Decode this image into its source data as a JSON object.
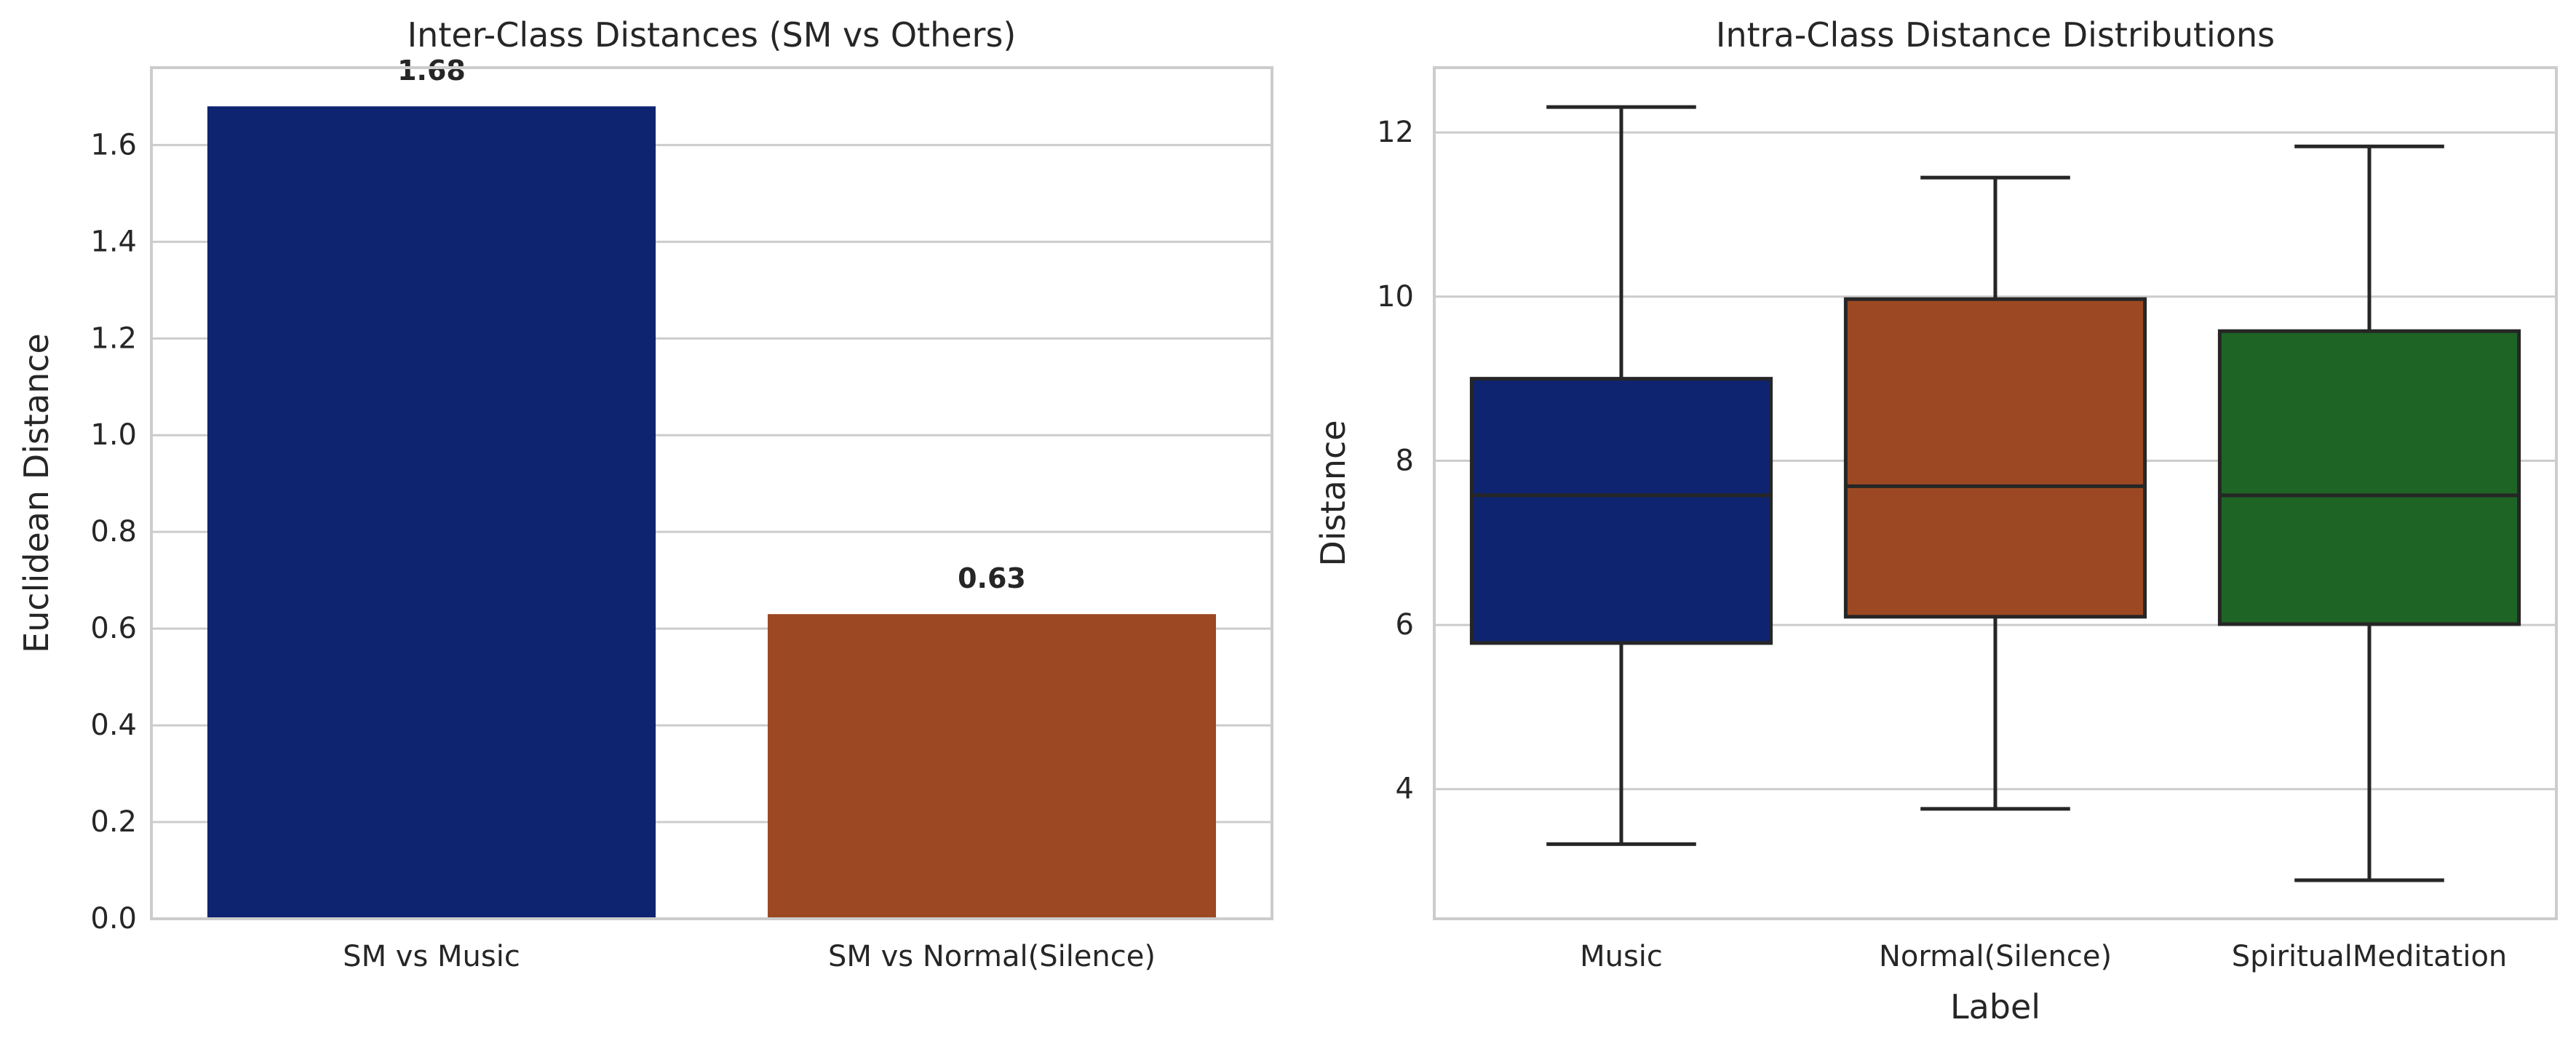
{
  "chart_data": [
    {
      "type": "bar",
      "title": "Inter-Class Distances (SM vs Others)",
      "xlabel": "",
      "ylabel": "Euclidean Distance",
      "categories": [
        "SM vs Music",
        "SM vs Normal(Silence)"
      ],
      "values": [
        1.68,
        0.63
      ],
      "value_labels": [
        "1.68",
        "0.63"
      ],
      "colors": [
        "#0f2470",
        "#9c4822"
      ],
      "ylim": [
        0,
        1.76
      ],
      "yticks": [
        0.0,
        0.2,
        0.4,
        0.6,
        0.8,
        1.0,
        1.2,
        1.4,
        1.6
      ],
      "ytick_labels": [
        "0.0",
        "0.2",
        "0.4",
        "0.6",
        "0.8",
        "1.0",
        "1.2",
        "1.4",
        "1.6"
      ],
      "grid": true,
      "legend": "none"
    },
    {
      "type": "box",
      "title": "Intra-Class Distance Distributions",
      "xlabel": "Label",
      "ylabel": "Distance",
      "categories": [
        "Music",
        "Normal(Silence)",
        "SpiritualMeditation"
      ],
      "boxes": [
        {
          "whisker_low": 3.33,
          "q1": 5.78,
          "median": 7.58,
          "q3": 9.0,
          "whisker_high": 12.31
        },
        {
          "whisker_low": 3.76,
          "q1": 6.1,
          "median": 7.69,
          "q3": 9.97,
          "whisker_high": 11.45
        },
        {
          "whisker_low": 2.89,
          "q1": 6.01,
          "median": 7.58,
          "q3": 9.58,
          "whisker_high": 11.83
        }
      ],
      "colors": [
        "#0f2470",
        "#9c4822",
        "#1e6424"
      ],
      "ylim": [
        2.42,
        12.79
      ],
      "yticks": [
        4,
        6,
        8,
        10,
        12
      ],
      "ytick_labels": [
        "4",
        "6",
        "8",
        "10",
        "12"
      ],
      "grid": true,
      "legend": "none"
    }
  ]
}
